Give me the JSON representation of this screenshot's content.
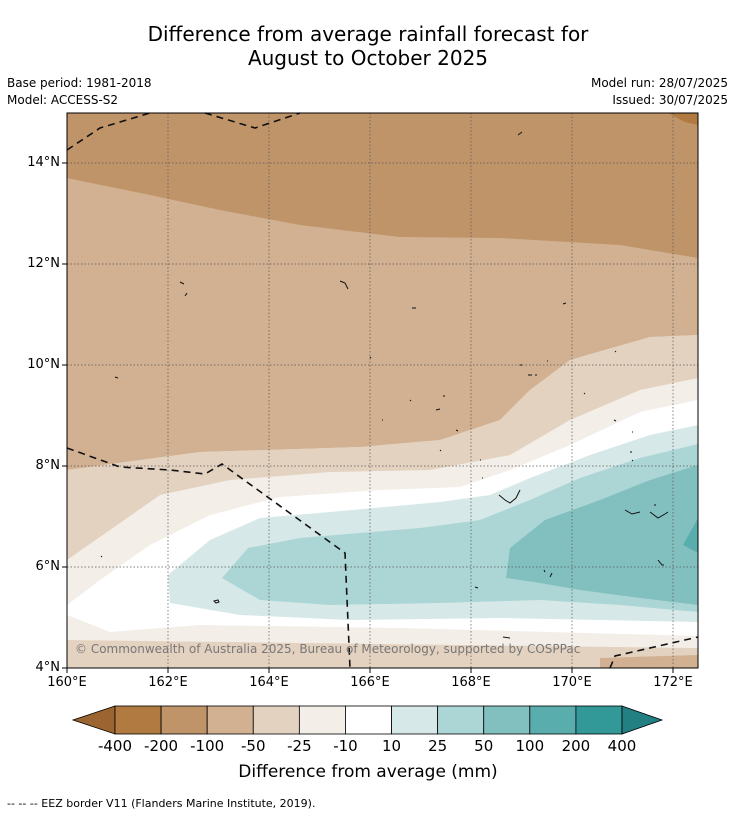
{
  "title_line1": "Difference from average rainfall forecast for",
  "title_line2": "August to October 2025",
  "meta_left": {
    "base_period": "Base period: 1981-2018",
    "model": "Model: ACCESS-S2"
  },
  "meta_right": {
    "model_run": "Model run: 28/07/2025",
    "issued": "Issued: 30/07/2025"
  },
  "y_ticks": [
    "14°N",
    "12°N",
    "10°N",
    "8°N",
    "6°N",
    "4°N"
  ],
  "x_ticks": [
    "160°E",
    "162°E",
    "164°E",
    "166°E",
    "168°E",
    "170°E",
    "172°E"
  ],
  "copyright": "© Commonwealth of Australia 2025, Bureau of Meteorology, supported by COSPPac",
  "colorbar": {
    "labels": [
      "-400",
      "-200",
      "-100",
      "-50",
      "-25",
      "-10",
      "10",
      "25",
      "50",
      "100",
      "200",
      "400"
    ],
    "colors": [
      "#9b6430",
      "#b07a41",
      "#c09469",
      "#d1b191",
      "#e4d2c0",
      "#f3eee8",
      "#ffffff",
      "#d6e9e8",
      "#acd5d5",
      "#82c0c0",
      "#5aadad",
      "#339898",
      "#227f82"
    ],
    "title": "Difference from average (mm)"
  },
  "footnote": "--  --  -- EEZ border V11 (Flanders Marine Institute, 2019)."
}
